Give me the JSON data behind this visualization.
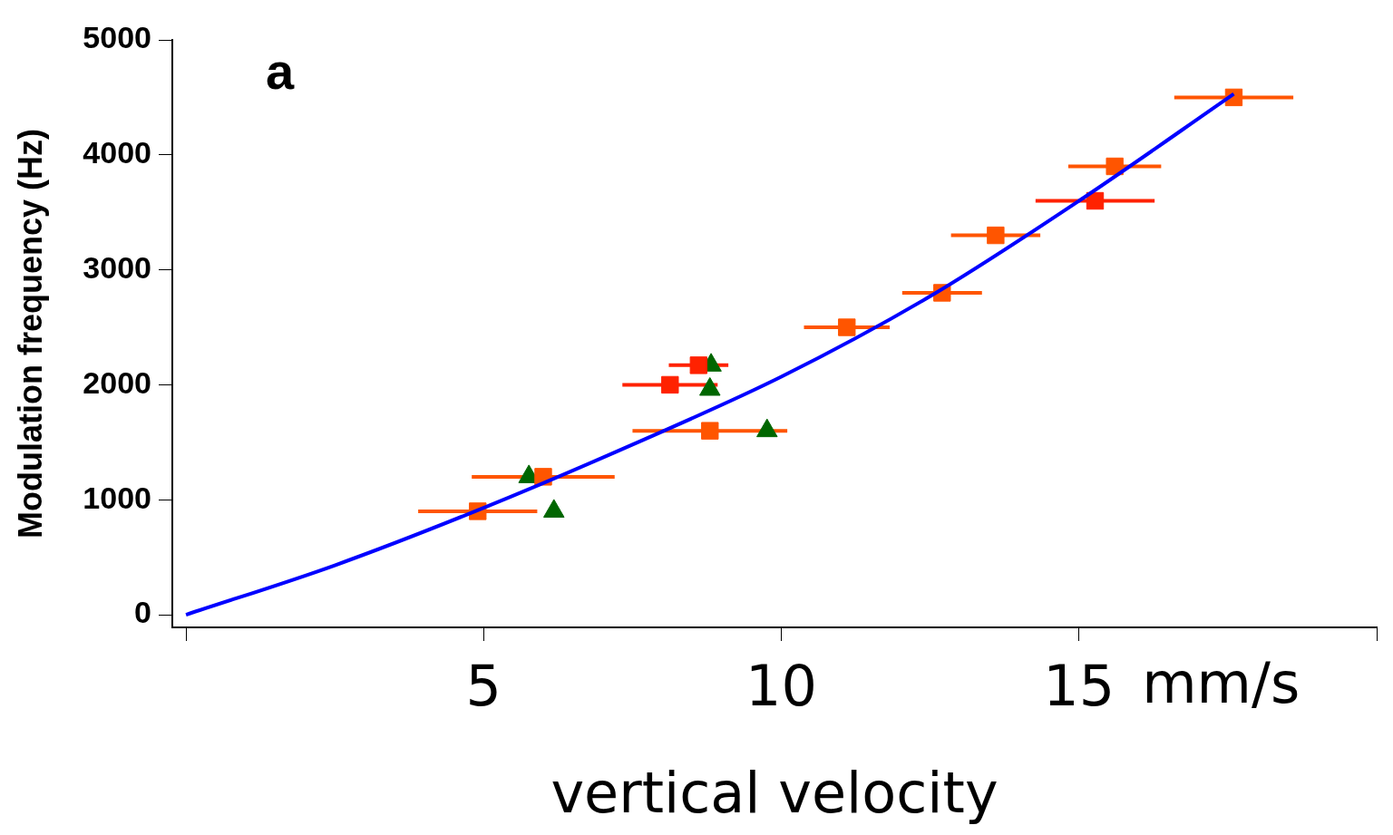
{
  "chart_data": {
    "type": "scatter",
    "xlabel": "vertical velocity",
    "ylabel": "Modulation frequency (Hz)",
    "annotations": [
      "a",
      "mm/s"
    ],
    "xlim": [
      -0.23,
      20
    ],
    "xticks": [
      {
        "value": 0,
        "label": null
      },
      5,
      10,
      15,
      {
        "value": 20,
        "label": null
      }
    ],
    "ylim": [
      -110,
      5000
    ],
    "yticks": [
      0,
      1000,
      2000,
      3000,
      4000,
      5000
    ],
    "grid": false,
    "legend": false,
    "series": [
      {
        "type": "line",
        "color": "#0000ff",
        "marker": "none",
        "x": [
          0,
          2.5,
          5,
          7.5,
          10,
          12.5,
          15,
          17.6
        ],
        "values": [
          0,
          430,
          930,
          1480,
          2070,
          2770,
          3600,
          4530
        ]
      },
      {
        "color": "#ff5500",
        "marker": "square",
        "x": [
          4.9,
          6.0,
          8.8,
          11.1,
          12.7,
          13.6,
          15.6,
          17.6
        ],
        "values": [
          900,
          1200,
          1600,
          2500,
          2800,
          3300,
          3900,
          4500
        ],
        "xerrors": [
          1.0,
          1.2,
          1.3,
          0.72,
          0.67,
          0.75,
          0.78,
          1.0
        ]
      },
      {
        "color": "#ff2200",
        "marker": "square",
        "x": [
          8.13,
          8.61,
          15.27
        ],
        "values": [
          2000,
          2170,
          3600
        ],
        "xerrors": [
          0.8,
          0.5,
          1.0
        ]
      },
      {
        "color": "#006600",
        "marker": "triangle",
        "x": [
          5.76,
          6.18,
          8.82,
          8.8,
          9.76
        ],
        "values": [
          1200,
          900,
          2170,
          1960,
          1600
        ]
      }
    ]
  }
}
